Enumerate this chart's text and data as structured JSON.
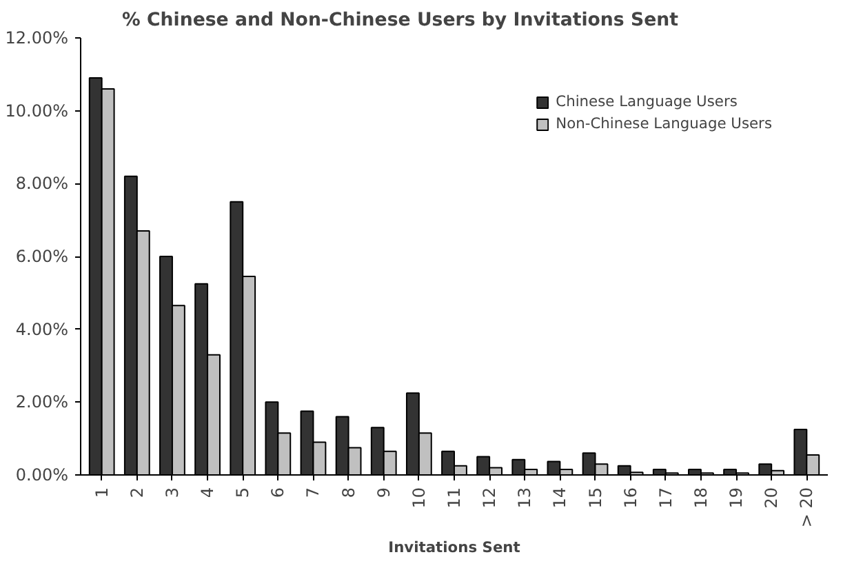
{
  "chart_data": {
    "type": "bar",
    "title": "% Chinese and Non-Chinese Users by Invitations Sent",
    "xlabel": "Invitations Sent",
    "categories": [
      "1",
      "2",
      "3",
      "4",
      "5",
      "6",
      "7",
      "8",
      "9",
      "10",
      "11",
      "12",
      "13",
      "14",
      "15",
      "16",
      "17",
      "18",
      "19",
      "20",
      "> 20"
    ],
    "series": [
      {
        "name": "Chinese Language Users",
        "color": "#333333",
        "values": [
          10.9,
          8.2,
          6.0,
          5.25,
          7.5,
          2.0,
          1.75,
          1.6,
          1.3,
          2.25,
          0.65,
          0.5,
          0.42,
          0.37,
          0.6,
          0.25,
          0.15,
          0.15,
          0.15,
          0.3,
          1.25
        ]
      },
      {
        "name": "Non-Chinese Language Users",
        "color": "#c0c0c0",
        "values": [
          10.6,
          6.7,
          4.65,
          3.3,
          5.45,
          1.15,
          0.9,
          0.75,
          0.65,
          1.15,
          0.25,
          0.2,
          0.15,
          0.15,
          0.3,
          0.07,
          0.05,
          0.05,
          0.05,
          0.12,
          0.55
        ]
      }
    ],
    "ylim": [
      0,
      12
    ],
    "yticks": [
      {
        "value": 0,
        "label": "0.00%"
      },
      {
        "value": 2,
        "label": "2.00%"
      },
      {
        "value": 4,
        "label": "4.00%"
      },
      {
        "value": 6,
        "label": "6.00%"
      },
      {
        "value": 8,
        "label": "8.00%"
      },
      {
        "value": 10,
        "label": "10.00%"
      },
      {
        "value": 12,
        "label": "12.00%"
      }
    ],
    "grid": false,
    "legend": "top right"
  }
}
